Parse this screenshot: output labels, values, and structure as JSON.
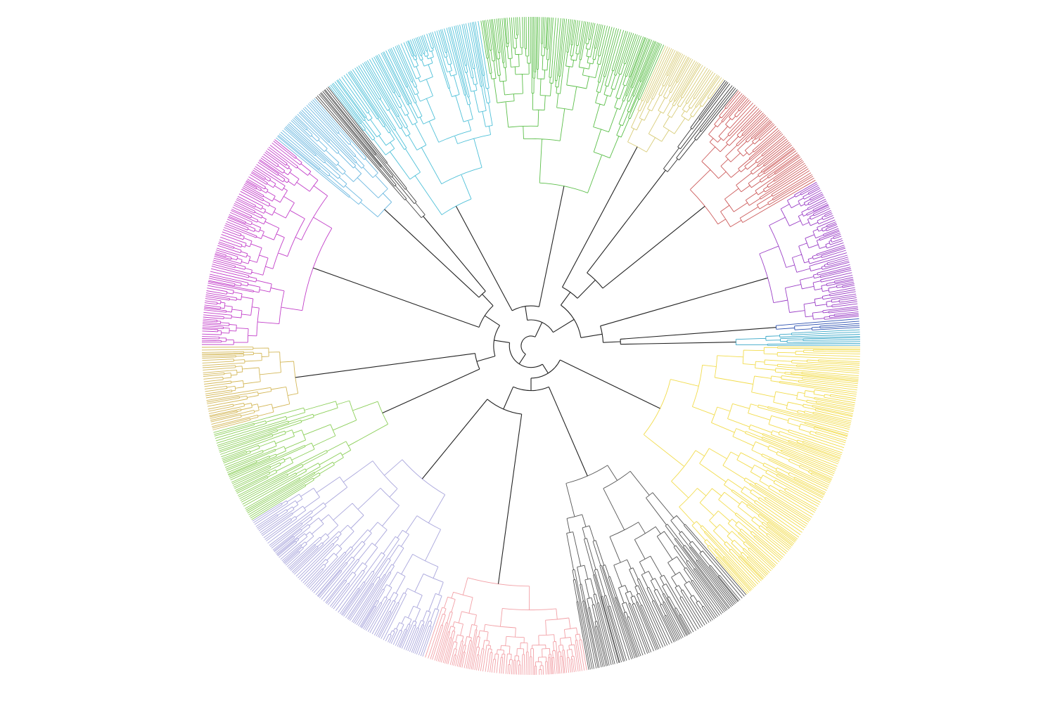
{
  "clades": [
    {
      "color": "#f2dc4e"
    },
    {
      "color": "#555555"
    },
    {
      "color": "#f2a0a6"
    },
    {
      "color": "#a9a6dc"
    },
    {
      "color": "#8ccf5a"
    },
    {
      "color": "#d4b85a"
    },
    {
      "color": "#c23fc9"
    },
    {
      "color": "#6cb8e0"
    },
    {
      "color": "#444444"
    },
    {
      "color": "#4fc0d8"
    },
    {
      "color": "#5cbf4a"
    },
    {
      "color": "#d8cc78"
    },
    {
      "color": "#333333"
    },
    {
      "color": "#cc5a5a"
    },
    {
      "color": "#9b3fc6"
    },
    {
      "color": "#2a4fb0"
    },
    {
      "color": "#3aa8c8"
    }
  ]
}
